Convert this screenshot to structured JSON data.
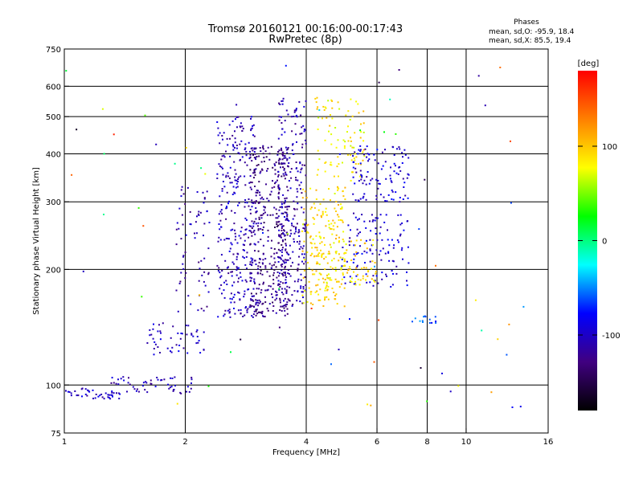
{
  "chart_data": {
    "type": "scatter",
    "title": "Tromsø 20160121 00:16:00-00:17:43",
    "subtitle": "RwPretec (8p)",
    "xlabel": "Frequency [MHz]",
    "ylabel": "Stationary phase Virtual Height [km]",
    "x_scale": "log",
    "y_scale": "log",
    "xlim": [
      1,
      16
    ],
    "ylim": [
      75,
      750
    ],
    "x_ticks": [
      1,
      2,
      4,
      6,
      8,
      10,
      16
    ],
    "y_ticks": [
      75,
      100,
      200,
      300,
      400,
      500,
      600,
      750
    ],
    "grid": true,
    "phase_box": {
      "heading": "Phases",
      "line_o": "mean, sd,O: -95.9, 18.4",
      "line_x": "mean, sd,X:  85.5, 19.4"
    },
    "colorbar": {
      "unit_label": "[deg]",
      "range": [
        -180,
        180
      ],
      "ticks": [
        100,
        0,
        -100
      ],
      "colors": [
        "#ff0000",
        "#ff8000",
        "#ffff00",
        "#00ff00",
        "#00ffff",
        "#0000ff",
        "#400080",
        "#000000"
      ]
    },
    "clusters": [
      {
        "freq_range": [
          1.0,
          1.45
        ],
        "height_range": [
          92,
          98
        ],
        "phase": -100,
        "count": 40
      },
      {
        "freq_range": [
          1.3,
          2.1
        ],
        "height_range": [
          95,
          105
        ],
        "phase": -105,
        "count": 55
      },
      {
        "freq_range": [
          1.6,
          2.3
        ],
        "height_range": [
          120,
          145
        ],
        "phase": -100,
        "count": 50
      },
      {
        "freq_range": [
          1.9,
          2.3
        ],
        "height_range": [
          155,
          330
        ],
        "phase": -110,
        "count": 70
      },
      {
        "freq_range": [
          2.4,
          3.0
        ],
        "height_range": [
          150,
          500
        ],
        "phase": -105,
        "count": 300
      },
      {
        "freq_range": [
          2.9,
          3.6
        ],
        "height_range": [
          150,
          420
        ],
        "phase": -125,
        "count": 380
      },
      {
        "freq_range": [
          3.4,
          4.0
        ],
        "height_range": [
          160,
          560
        ],
        "phase": -110,
        "count": 260
      },
      {
        "freq_range": [
          3.9,
          5.0
        ],
        "height_range": [
          160,
          330
        ],
        "phase": 90,
        "count": 220
      },
      {
        "freq_range": [
          4.2,
          5.6
        ],
        "height_range": [
          340,
          560
        ],
        "phase": 85,
        "count": 90
      },
      {
        "freq_range": [
          4.9,
          7.2
        ],
        "height_range": [
          180,
          280
        ],
        "phase": -95,
        "count": 120
      },
      {
        "freq_range": [
          5.2,
          7.2
        ],
        "height_range": [
          300,
          420
        ],
        "phase": -95,
        "count": 110
      },
      {
        "freq_range": [
          4.8,
          6.0
        ],
        "height_range": [
          180,
          240
        ],
        "phase": 90,
        "count": 60
      },
      {
        "freq_range": [
          7.2,
          8.5
        ],
        "height_range": [
          145,
          152
        ],
        "phase": -60,
        "count": 14
      },
      {
        "freq_range": [
          1.0,
          14.0
        ],
        "height_range": [
          85,
          680
        ],
        "phase": 0,
        "count": 70
      }
    ]
  }
}
